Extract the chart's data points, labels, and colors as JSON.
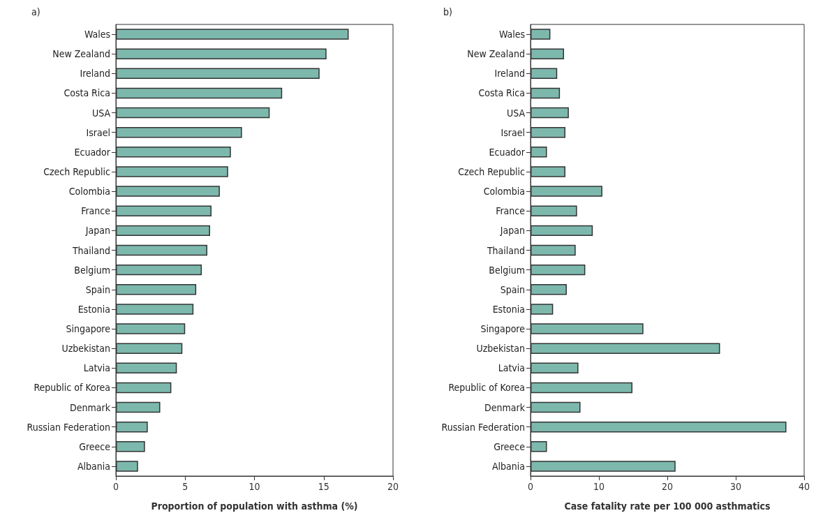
{
  "chart_data": [
    {
      "type": "bar",
      "orientation": "horizontal",
      "annotations": [
        "a)"
      ],
      "xlabel": "Proportion of population with asthma (%)",
      "categories": [
        "Wales",
        "New Zealand",
        "Ireland",
        "Costa Rica",
        "USA",
        "Israel",
        "Ecuador",
        "Czech Republic",
        "Colombia",
        "France",
        "Japan",
        "Thailand",
        "Belgium",
        "Spain",
        "Estonia",
        "Singapore",
        "Uzbekistan",
        "Latvia",
        "Republic of Korea",
        "Denmark",
        "Russian Federation",
        "Greece",
        "Albania"
      ],
      "values": [
        16.8,
        15.2,
        14.7,
        12.0,
        11.1,
        9.1,
        8.3,
        8.1,
        7.5,
        6.9,
        6.8,
        6.6,
        6.2,
        5.8,
        5.6,
        5.0,
        4.8,
        4.4,
        4.0,
        3.2,
        2.3,
        2.1,
        1.6
      ],
      "color": "#7db8ad",
      "xlim": [
        0,
        20
      ],
      "xticks": [
        0,
        5,
        10,
        15,
        20
      ]
    },
    {
      "type": "bar",
      "orientation": "horizontal",
      "annotations": [
        "b)"
      ],
      "xlabel": "Case fatality rate per 100 000 asthmatics",
      "categories": [
        "Wales",
        "New Zealand",
        "Ireland",
        "Costa Rica",
        "USA",
        "Israel",
        "Ecuador",
        "Czech Republic",
        "Colombia",
        "France",
        "Japan",
        "Thailand",
        "Belgium",
        "Spain",
        "Estonia",
        "Singapore",
        "Uzbekistan",
        "Latvia",
        "Republic of Korea",
        "Denmark",
        "Russian Federation",
        "Greece",
        "Albania"
      ],
      "values": [
        2.9,
        4.9,
        3.9,
        4.3,
        5.6,
        5.1,
        2.4,
        5.1,
        10.5,
        6.8,
        9.1,
        6.6,
        8.0,
        5.3,
        3.3,
        16.5,
        27.7,
        7.0,
        14.9,
        7.3,
        37.4,
        2.4,
        21.2
      ],
      "color": "#7db8ad",
      "xlim": [
        0,
        40
      ],
      "xticks": [
        0,
        10,
        20,
        30,
        40
      ]
    }
  ]
}
